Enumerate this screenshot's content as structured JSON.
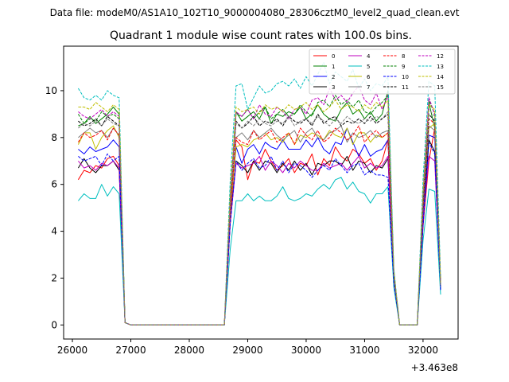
{
  "figure": {
    "suptitle": "Data file: modeM0/AS1A10_102T10_9000004080_28306cztM0_level2_quad_clean.evt",
    "title": "Quadrant 1 module wise count rates with 100.0s bins.",
    "offset_text": "+3.463e8"
  },
  "chart_data": {
    "type": "line",
    "title": "Quadrant 1 module wise count rates with 100.0s bins.",
    "xlabel": "",
    "ylabel": "",
    "x_offset": 346300000,
    "xlim": [
      25850,
      32600
    ],
    "ylim": [
      -0.6,
      11.9
    ],
    "xticks": [
      26000,
      27000,
      28000,
      29000,
      30000,
      31000,
      32000
    ],
    "yticks": [
      0,
      2,
      4,
      6,
      8,
      10
    ],
    "grid": false,
    "legend_location": "top-right",
    "legend_columns": 4,
    "x": [
      26100,
      26200,
      26300,
      26400,
      26500,
      26600,
      26700,
      26800,
      26900,
      27000,
      27100,
      27200,
      27300,
      27400,
      27500,
      27600,
      27700,
      27800,
      27900,
      28000,
      28100,
      28200,
      28300,
      28400,
      28500,
      28600,
      28700,
      28800,
      28900,
      29000,
      29100,
      29200,
      29300,
      29400,
      29500,
      29600,
      29700,
      29800,
      29900,
      30000,
      30100,
      30200,
      30300,
      30400,
      30500,
      30600,
      30700,
      30800,
      30900,
      31000,
      31100,
      31200,
      31300,
      31400,
      31500,
      31600,
      31700,
      31800,
      31900,
      32000,
      32100,
      32200,
      32300
    ],
    "series": [
      {
        "name": "0",
        "color": "#ff0000",
        "dash": "solid",
        "values": [
          6.2,
          6.6,
          6.5,
          6.8,
          6.7,
          7.1,
          7.2,
          6.8,
          0.1,
          0,
          0,
          0,
          0,
          0,
          0,
          0,
          0,
          0,
          0,
          0,
          0,
          0,
          0,
          0,
          0,
          0,
          4.3,
          7.9,
          7.6,
          6.2,
          7.0,
          6.9,
          7.5,
          7.0,
          6.6,
          6.8,
          7.1,
          6.5,
          6.9,
          6.8,
          7.3,
          6.4,
          7.1,
          6.8,
          7.6,
          7.2,
          7.0,
          7.5,
          7.3,
          6.9,
          7.1,
          6.6,
          7.0,
          7.9,
          2.0,
          0,
          0,
          0,
          0,
          4.2,
          7.0,
          8.4,
          1.7
        ]
      },
      {
        "name": "1",
        "color": "#008000",
        "dash": "solid",
        "values": [
          8.5,
          8.6,
          8.9,
          8.6,
          8.8,
          9.0,
          9.3,
          9.0,
          0.1,
          0,
          0,
          0,
          0,
          0,
          0,
          0,
          0,
          0,
          0,
          0,
          0,
          0,
          0,
          0,
          0,
          0,
          5.3,
          9.1,
          8.7,
          8.9,
          9.1,
          8.8,
          9.3,
          8.6,
          9.0,
          8.9,
          9.1,
          9.0,
          9.3,
          8.8,
          9.0,
          9.4,
          9.0,
          8.8,
          8.7,
          9.2,
          9.5,
          9.0,
          9.2,
          8.8,
          9.1,
          8.7,
          9.0,
          10.0,
          2.2,
          0,
          0,
          0,
          0,
          5.3,
          9.5,
          8.4,
          1.8
        ]
      },
      {
        "name": "2",
        "color": "#0000ff",
        "dash": "solid",
        "values": [
          7.5,
          7.3,
          7.6,
          7.4,
          7.5,
          7.6,
          7.9,
          7.6,
          0.1,
          0,
          0,
          0,
          0,
          0,
          0,
          0,
          0,
          0,
          0,
          0,
          0,
          0,
          0,
          0,
          0,
          0,
          4.8,
          7.6,
          6.9,
          7.5,
          7.7,
          7.3,
          7.8,
          7.6,
          7.5,
          7.9,
          7.5,
          7.5,
          7.5,
          7.9,
          7.6,
          8.0,
          7.5,
          7.3,
          7.8,
          7.7,
          8.4,
          7.8,
          7.2,
          7.7,
          7.2,
          7.4,
          7.5,
          7.9,
          2.0,
          0,
          0,
          0,
          0,
          4.8,
          8.1,
          8.0,
          1.6
        ]
      },
      {
        "name": "3",
        "color": "#000000",
        "dash": "solid",
        "values": [
          6.7,
          7.1,
          6.7,
          6.5,
          6.8,
          6.8,
          7.0,
          6.6,
          0.1,
          0,
          0,
          0,
          0,
          0,
          0,
          0,
          0,
          0,
          0,
          0,
          0,
          0,
          0,
          0,
          0,
          0,
          4.3,
          7.0,
          6.8,
          6.5,
          7.0,
          6.6,
          7.0,
          6.9,
          6.5,
          6.9,
          6.6,
          7.0,
          6.6,
          6.9,
          6.4,
          6.9,
          6.8,
          7.0,
          7.0,
          6.8,
          7.2,
          6.6,
          7.0,
          6.9,
          6.5,
          6.8,
          6.7,
          7.1,
          1.9,
          0,
          0,
          0,
          0,
          4.3,
          7.9,
          7.4,
          1.5
        ]
      },
      {
        "name": "4",
        "color": "#bf00bf",
        "dash": "solid",
        "values": [
          7.0,
          6.7,
          6.8,
          6.6,
          6.9,
          6.8,
          7.0,
          6.7,
          0.1,
          0,
          0,
          0,
          0,
          0,
          0,
          0,
          0,
          0,
          0,
          0,
          0,
          0,
          0,
          0,
          0,
          0,
          4.3,
          6.9,
          6.7,
          6.8,
          6.9,
          7.2,
          6.6,
          7.0,
          6.8,
          6.5,
          6.9,
          6.7,
          7.0,
          6.8,
          6.6,
          6.6,
          6.9,
          6.7,
          6.8,
          6.9,
          6.6,
          6.9,
          7.2,
          6.7,
          6.9,
          6.7,
          6.8,
          7.2,
          1.9,
          0,
          0,
          0,
          0,
          4.4,
          7.2,
          7.0,
          1.5
        ]
      },
      {
        "name": "5",
        "color": "#00bfbf",
        "dash": "solid",
        "values": [
          5.3,
          5.6,
          5.4,
          5.4,
          6.0,
          5.5,
          5.9,
          5.6,
          0.1,
          0,
          0,
          0,
          0,
          0,
          0,
          0,
          0,
          0,
          0,
          0,
          0,
          0,
          0,
          0,
          0,
          0,
          3.2,
          5.3,
          5.3,
          5.6,
          5.3,
          5.5,
          5.3,
          5.3,
          5.5,
          5.9,
          5.4,
          5.3,
          5.4,
          5.6,
          5.5,
          5.8,
          6.0,
          5.8,
          6.2,
          6.3,
          5.8,
          6.1,
          5.7,
          5.6,
          5.2,
          5.6,
          5.6,
          5.9,
          1.6,
          0,
          0,
          0,
          0,
          3.6,
          5.8,
          5.7,
          1.3
        ]
      },
      {
        "name": "6",
        "color": "#bfbf00",
        "dash": "solid",
        "values": [
          7.7,
          8.2,
          8.2,
          7.5,
          8.0,
          8.3,
          8.5,
          8.0,
          0.1,
          0,
          0,
          0,
          0,
          0,
          0,
          0,
          0,
          0,
          0,
          0,
          0,
          0,
          0,
          0,
          0,
          0,
          4.8,
          7.6,
          7.7,
          7.6,
          7.9,
          8.0,
          8.2,
          7.9,
          8.0,
          7.8,
          8.2,
          7.7,
          8.1,
          8.0,
          8.2,
          8.1,
          7.9,
          8.3,
          8.1,
          8.0,
          8.4,
          7.7,
          8.2,
          8.2,
          7.8,
          8.1,
          8.0,
          8.2,
          2.1,
          0,
          0,
          0,
          0,
          5.0,
          8.4,
          8.6,
          1.7
        ]
      },
      {
        "name": "7",
        "color": "#808080",
        "dash": "solid",
        "values": [
          8.0,
          8.2,
          8.4,
          8.2,
          8.3,
          8.0,
          8.4,
          8.1,
          0.1,
          0,
          0,
          0,
          0,
          0,
          0,
          0,
          0,
          0,
          0,
          0,
          0,
          0,
          0,
          0,
          0,
          0,
          5.0,
          8.0,
          8.2,
          7.9,
          8.3,
          8.0,
          8.2,
          8.4,
          8.1,
          7.9,
          8.1,
          8.3,
          7.8,
          8.2,
          8.4,
          8.0,
          7.9,
          8.2,
          8.3,
          8.5,
          7.8,
          8.2,
          8.0,
          8.1,
          8.3,
          8.0,
          8.2,
          8.3,
          2.1,
          0,
          0,
          0,
          0,
          5.1,
          8.5,
          8.3,
          1.7
        ]
      },
      {
        "name": "8",
        "color": "#ff0000",
        "dash": "dashed",
        "values": [
          7.8,
          8.2,
          8.0,
          8.1,
          8.3,
          7.9,
          8.4,
          8.1,
          0.1,
          0,
          0,
          0,
          0,
          0,
          0,
          0,
          0,
          0,
          0,
          0,
          0,
          0,
          0,
          0,
          0,
          0,
          4.9,
          8.0,
          7.8,
          7.7,
          8.3,
          7.9,
          8.1,
          8.3,
          7.8,
          8.0,
          8.2,
          7.7,
          8.4,
          8.1,
          7.9,
          8.3,
          7.8,
          8.0,
          8.4,
          8.2,
          7.9,
          8.1,
          8.5,
          7.8,
          8.1,
          8.3,
          8.0,
          8.2,
          2.0,
          0,
          0,
          0,
          0,
          5.0,
          8.8,
          8.6,
          1.7
        ]
      },
      {
        "name": "9",
        "color": "#008000",
        "dash": "dashed",
        "values": [
          9.0,
          8.6,
          8.8,
          8.7,
          9.1,
          8.9,
          9.0,
          8.8,
          0.1,
          0,
          0,
          0,
          0,
          0,
          0,
          0,
          0,
          0,
          0,
          0,
          0,
          0,
          0,
          0,
          0,
          0,
          5.4,
          9.0,
          8.9,
          9.2,
          8.8,
          9.1,
          9.3,
          8.8,
          9.0,
          9.2,
          8.9,
          9.0,
          9.4,
          9.1,
          8.9,
          9.5,
          9.6,
          9.3,
          9.8,
          9.4,
          9.6,
          9.3,
          9.6,
          9.1,
          9.0,
          9.3,
          9.5,
          9.8,
          2.2,
          0,
          0,
          0,
          0,
          5.5,
          9.6,
          9.0,
          1.8
        ]
      },
      {
        "name": "10",
        "color": "#0000ff",
        "dash": "dashed",
        "values": [
          7.2,
          7.0,
          7.1,
          7.2,
          6.8,
          7.3,
          7.0,
          7.2,
          0.1,
          0,
          0,
          0,
          0,
          0,
          0,
          0,
          0,
          0,
          0,
          0,
          0,
          0,
          0,
          0,
          0,
          0,
          4.3,
          7.0,
          6.6,
          6.9,
          7.1,
          6.7,
          6.8,
          7.2,
          6.6,
          7.0,
          6.5,
          6.9,
          6.8,
          6.6,
          6.3,
          6.6,
          6.8,
          6.6,
          7.1,
          6.8,
          6.5,
          6.8,
          6.9,
          6.4,
          6.6,
          6.4,
          6.4,
          6.3,
          1.8,
          0,
          0,
          0,
          0,
          4.2,
          7.8,
          7.3,
          1.5
        ]
      },
      {
        "name": "11",
        "color": "#000000",
        "dash": "dashed",
        "values": [
          8.7,
          8.5,
          8.6,
          8.8,
          8.5,
          8.9,
          8.7,
          8.5,
          0.1,
          0,
          0,
          0,
          0,
          0,
          0,
          0,
          0,
          0,
          0,
          0,
          0,
          0,
          0,
          0,
          0,
          0,
          5.2,
          8.7,
          8.4,
          8.6,
          8.9,
          8.5,
          8.7,
          8.6,
          8.8,
          8.5,
          8.9,
          8.7,
          8.6,
          8.8,
          8.5,
          9.0,
          8.6,
          8.8,
          8.9,
          8.5,
          8.7,
          8.6,
          8.8,
          8.6,
          8.9,
          8.6,
          8.8,
          9.0,
          2.1,
          0,
          0,
          0,
          0,
          5.2,
          9.0,
          8.7,
          1.7
        ]
      },
      {
        "name": "12",
        "color": "#bf00bf",
        "dash": "dashed",
        "values": [
          9.1,
          8.9,
          8.8,
          9.0,
          9.2,
          8.9,
          9.1,
          8.9,
          0.1,
          0,
          0,
          0,
          0,
          0,
          0,
          0,
          0,
          0,
          0,
          0,
          0,
          0,
          0,
          0,
          0,
          0,
          5.4,
          9.1,
          8.9,
          9.2,
          8.8,
          9.4,
          9.0,
          8.9,
          9.3,
          9.1,
          8.8,
          9.2,
          9.3,
          9.0,
          9.6,
          9.7,
          9.4,
          10.1,
          9.6,
          9.8,
          9.5,
          9.9,
          10.2,
          9.6,
          9.4,
          9.9,
          9.2,
          9.8,
          2.3,
          0,
          0,
          0,
          0,
          5.6,
          9.7,
          9.0,
          1.8
        ]
      },
      {
        "name": "13",
        "color": "#00bfbf",
        "dash": "dashed",
        "values": [
          10.1,
          9.7,
          9.6,
          9.8,
          9.6,
          10.0,
          9.8,
          9.7,
          0.1,
          0,
          0,
          0,
          0,
          0,
          0,
          0,
          0,
          0,
          0,
          0,
          0,
          0,
          0,
          0,
          0,
          0,
          6.1,
          10.2,
          10.3,
          9.2,
          9.7,
          10.2,
          9.9,
          10.0,
          10.3,
          10.4,
          10.2,
          10.5,
          10.1,
          10.6,
          10.2,
          10.7,
          11.2,
          10.3,
          10.8,
          10.6,
          10.4,
          10.9,
          10.1,
          10.5,
          10.0,
          10.3,
          10.2,
          10.6,
          2.4,
          0,
          0,
          0,
          0,
          6.2,
          10.4,
          10.2,
          2.0
        ]
      },
      {
        "name": "14",
        "color": "#bfbf00",
        "dash": "dashed",
        "values": [
          9.3,
          9.3,
          9.2,
          9.5,
          9.3,
          9.1,
          9.4,
          9.2,
          0.1,
          0,
          0,
          0,
          0,
          0,
          0,
          0,
          0,
          0,
          0,
          0,
          0,
          0,
          0,
          0,
          0,
          0,
          5.6,
          9.3,
          9.1,
          9.2,
          9.3,
          9.0,
          9.4,
          9.2,
          9.3,
          9.1,
          9.4,
          9.2,
          9.3,
          9.5,
          9.2,
          9.4,
          9.1,
          9.3,
          9.6,
          9.2,
          9.4,
          9.3,
          9.1,
          9.4,
          9.2,
          9.5,
          9.3,
          9.6,
          2.3,
          0,
          0,
          0,
          0,
          5.7,
          9.4,
          9.2,
          1.8
        ]
      },
      {
        "name": "15",
        "color": "#808080",
        "dash": "dashed",
        "values": [
          8.4,
          8.6,
          8.5,
          8.7,
          8.5,
          8.8,
          8.6,
          8.5,
          0.1,
          0,
          0,
          0,
          0,
          0,
          0,
          0,
          0,
          0,
          0,
          0,
          0,
          0,
          0,
          0,
          0,
          0,
          5.2,
          8.6,
          8.4,
          8.7,
          8.5,
          8.8,
          8.6,
          8.5,
          8.7,
          8.6,
          8.9,
          8.5,
          8.7,
          8.8,
          8.6,
          8.9,
          8.7,
          8.5,
          8.8,
          8.6,
          8.9,
          8.7,
          8.6,
          8.8,
          8.7,
          8.9,
          8.8,
          9.1,
          2.1,
          0,
          0,
          0,
          0,
          5.3,
          9.2,
          8.9,
          1.7
        ]
      }
    ]
  }
}
